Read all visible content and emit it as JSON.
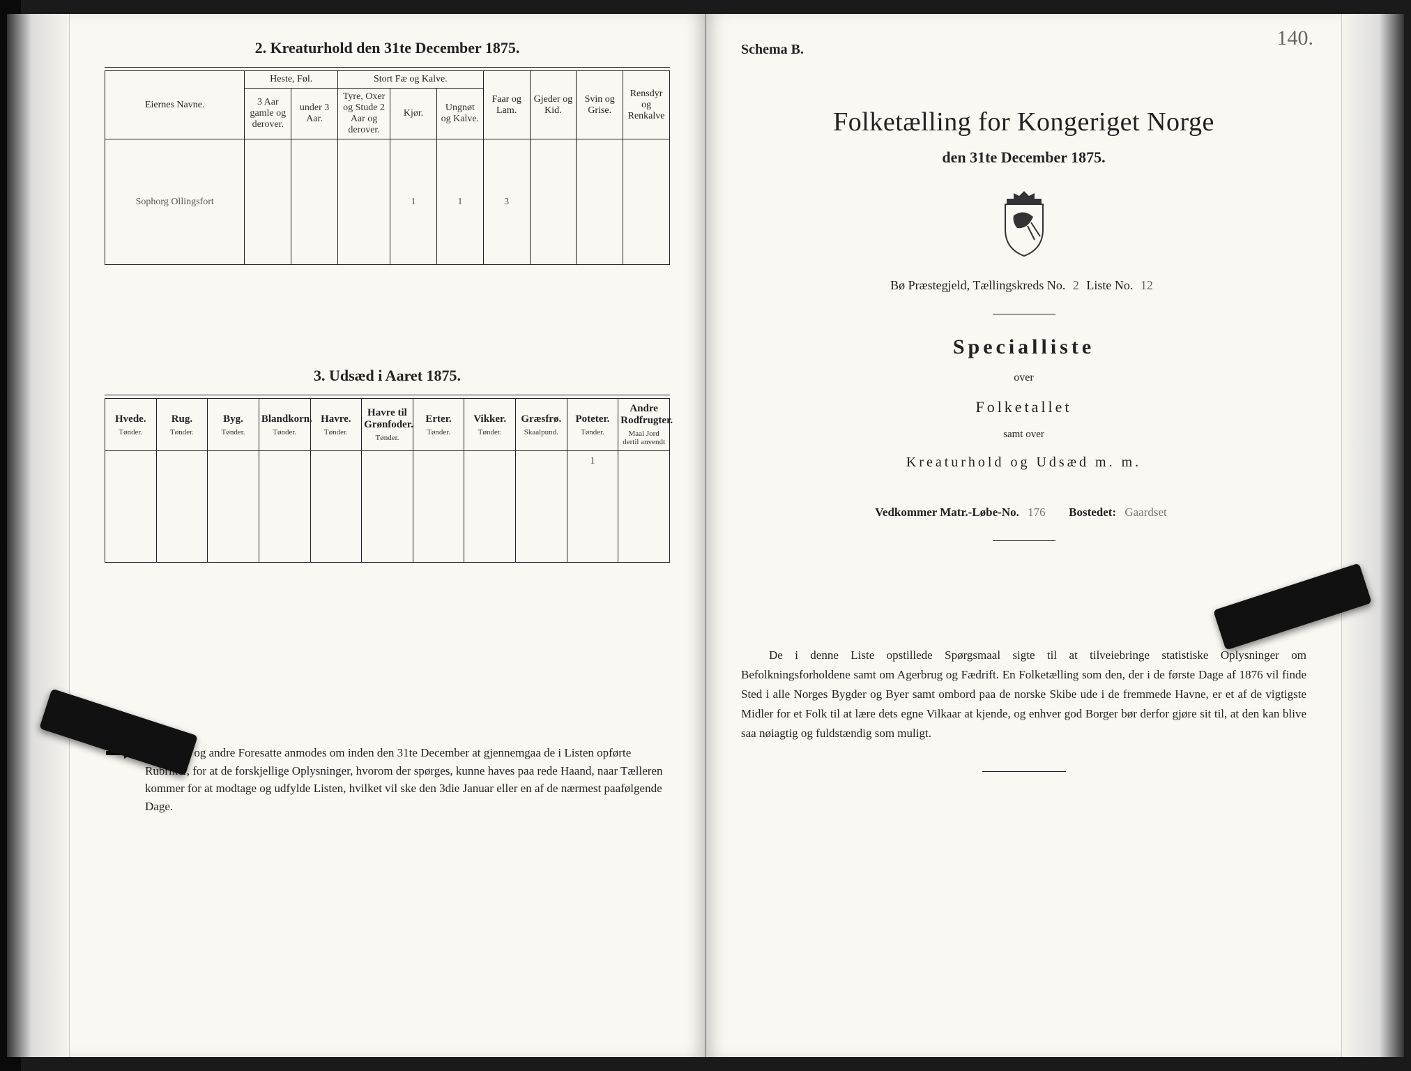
{
  "leftPage": {
    "section2": {
      "title": "2.  Kreaturhold den 31te December 1875.",
      "table": {
        "groupHeaders": {
          "eiernes": "Eiernes Navne.",
          "heste": "Heste, Føl.",
          "stortFae": "Stort Fæ og Kalve.",
          "faar": "Faar og Lam.",
          "gjeder": "Gjeder og Kid.",
          "svin": "Svin og Grise.",
          "ren": "Rensdyr og Renkalve"
        },
        "subHeaders": {
          "heste1": "3 Aar gamle og derover.",
          "heste2": "under 3 Aar.",
          "fae1": "Tyre, Oxer og Stude 2 Aar og derover.",
          "fae2": "Kjør.",
          "fae3": "Ungnøt og Kalve."
        },
        "row": {
          "name": "Sophorg Ollingsfort",
          "heste1": "",
          "heste2": "",
          "fae1": "",
          "fae2": "1",
          "fae3": "1",
          "faar": "3",
          "gjeder": "",
          "svin": "",
          "ren": ""
        }
      }
    },
    "section3": {
      "title": "3.  Udsæd i Aaret 1875.",
      "columns": [
        {
          "label": "Hvede.",
          "unit": "Tønder."
        },
        {
          "label": "Rug.",
          "unit": "Tønder."
        },
        {
          "label": "Byg.",
          "unit": "Tønder."
        },
        {
          "label": "Blandkorn.",
          "unit": "Tønder."
        },
        {
          "label": "Havre.",
          "unit": "Tønder."
        },
        {
          "label": "Havre til Grønfoder.",
          "unit": "Tønder."
        },
        {
          "label": "Erter.",
          "unit": "Tønder."
        },
        {
          "label": "Vikker.",
          "unit": "Tønder."
        },
        {
          "label": "Græsfrø.",
          "unit": "Skaalpund."
        },
        {
          "label": "Poteter.",
          "unit": "Tønder."
        },
        {
          "label": "Andre Rodfrugter.",
          "unit": "Maal Jord dertil anvendt"
        }
      ],
      "values": [
        "",
        "",
        "",
        "",
        "",
        "",
        "",
        "",
        "",
        "1",
        ""
      ]
    },
    "notice": "Husfædre og andre Foresatte anmodes om inden den 31te December at gjennemgaa de i Listen opførte Rubriker, for at de forskjellige Oplysninger, hvorom der spørges, kunne haves paa rede Haand, naar Tælleren kommer for at modtage og udfylde Listen, hvilket vil ske den 3die Januar eller en af de nærmest paafølgende Dage."
  },
  "rightPage": {
    "schemaLabel": "Schema B.",
    "pageNumberHand": "140.",
    "mainTitle": "Folketælling for Kongeriget Norge",
    "subtitle": "den 31te December 1875.",
    "metaLine": {
      "prefix": "Bø Præstegjeld,  Tællingskreds No.",
      "kredsNo": "2",
      "middle": "        Liste No.",
      "listeNo": "12"
    },
    "specialliste": {
      "title": "Specialliste",
      "over": "over",
      "folketallet": "Folketallet",
      "samt": "samt over",
      "kreatur": "Kreaturhold og Udsæd m. m."
    },
    "vedkommer": {
      "label1": "Vedkommer Matr.-Løbe-No.",
      "val1": "176",
      "label2": "Bostedet:",
      "val2": "Gaardset"
    },
    "bottomPara": "De i denne Liste opstillede Spørgsmaal sigte til at tilveiebringe statistiske Oplysninger om Befolkningsforholdene samt om Agerbrug og Fædrift.   En Folketælling som den, der i de første Dage af 1876 vil finde Sted i alle Norges Bygder og Byer samt ombord paa de norske Skibe ude i de fremmede Havne, er et af de vigtigste Midler for et Folk til at lære dets egne Vilkaar at kjende, og enhver god Borger bør derfor gjøre sit til, at den kan blive saa nøiagtig og fuldstændig som muligt."
  },
  "colors": {
    "pageBg": "#faf8f2",
    "ink": "#222222",
    "faintHand": "#666666"
  }
}
